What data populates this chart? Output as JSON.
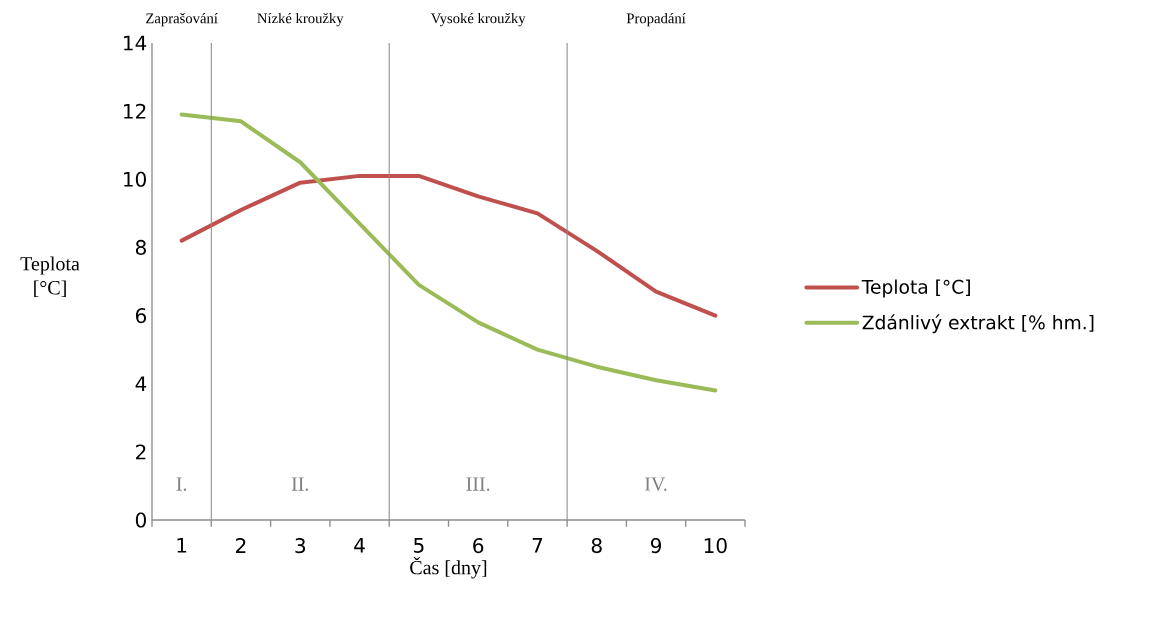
{
  "chart_data": {
    "type": "line",
    "xlabel": "Čas [dny]",
    "ylabel": "Teplota [°C]",
    "x": [
      1,
      2,
      3,
      4,
      5,
      6,
      7,
      8,
      9,
      10
    ],
    "xlim": [
      0.5,
      10.5
    ],
    "xticks": [
      1,
      2,
      3,
      4,
      5,
      6,
      7,
      8,
      9,
      10
    ],
    "ylim": [
      0,
      14
    ],
    "yticks": [
      0,
      2,
      4,
      6,
      8,
      10,
      12,
      14
    ],
    "legend": "right",
    "series": [
      {
        "name": "Teplota [°C]",
        "color": "#c0504d",
        "values": [
          8.2,
          9.1,
          9.9,
          10.1,
          10.1,
          9.5,
          9.0,
          7.9,
          6.7,
          6.0
        ]
      },
      {
        "name": "Zdánlivý extrakt [% hm.]",
        "color": "#9bbb59",
        "values": [
          11.9,
          11.7,
          10.5,
          8.7,
          6.9,
          5.8,
          5.0,
          4.5,
          4.1,
          3.8
        ]
      }
    ],
    "ref_lines": [
      {
        "axis": "x",
        "value": 1.5
      },
      {
        "axis": "x",
        "value": 4.5
      },
      {
        "axis": "x",
        "value": 7.5
      }
    ],
    "annotations": [
      "Zaprašování",
      "Nízké kroužky",
      "Vysoké kroužky",
      "Propadání",
      "I.",
      "II.",
      "III.",
      "IV."
    ]
  }
}
